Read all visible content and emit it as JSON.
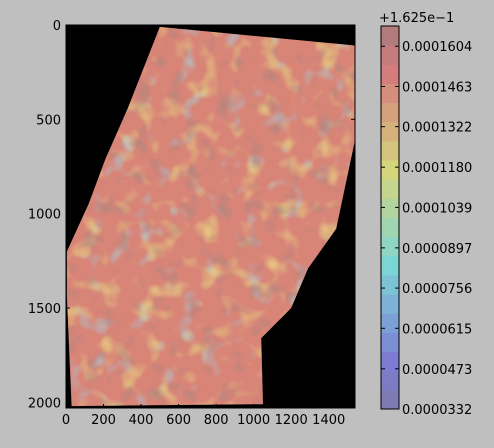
{
  "chart_data": {
    "type": "heatmap",
    "title": "",
    "xlabel": "",
    "ylabel": "",
    "x_ticks": [
      "0",
      "200",
      "400",
      "600",
      "800",
      "1000",
      "1200",
      "1400"
    ],
    "y_ticks": [
      "0",
      "500",
      "1000",
      "1500",
      "2000"
    ],
    "xlim": [
      0,
      1540
    ],
    "ylim": [
      2030,
      0
    ],
    "y_axis_inverted": true,
    "image_background": "#000000",
    "colorbar": {
      "offset_label": "+1.625e−1",
      "tick_labels": [
        "0.0001604",
        "0.0001463",
        "0.0001322",
        "0.0001180",
        "0.0001039",
        "0.0000897",
        "0.0000756",
        "0.0000615",
        "0.0000473",
        "0.0000332"
      ],
      "tick_values": [
        0.0001604,
        0.0001463,
        0.0001322,
        0.000118,
        0.0001039,
        8.97e-05,
        7.56e-05,
        6.15e-05,
        4.73e-05,
        3.32e-05
      ],
      "range": [
        3.32e-05,
        0.0001675
      ],
      "colormap": "jet",
      "alpha": 0.35
    },
    "footprint_data_polygon": [
      [
        500,
        10
      ],
      [
        1560,
        110
      ],
      [
        1540,
        610
      ],
      [
        1440,
        1080
      ],
      [
        1290,
        1290
      ],
      [
        1200,
        1500
      ],
      [
        1040,
        1660
      ],
      [
        1050,
        2010
      ],
      [
        30,
        2020
      ],
      [
        5,
        1440
      ],
      [
        5,
        1200
      ],
      [
        120,
        950
      ],
      [
        210,
        710
      ],
      [
        330,
        440
      ]
    ]
  }
}
